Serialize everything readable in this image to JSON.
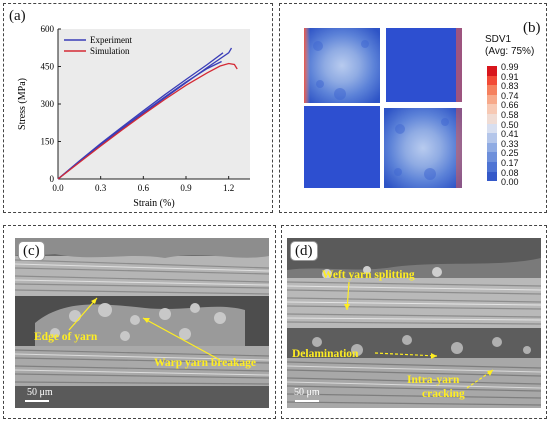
{
  "panels": {
    "a": {
      "label": "(a)"
    },
    "b": {
      "label": "(b)"
    },
    "c": {
      "label": "(c)"
    },
    "d": {
      "label": "(d)"
    }
  },
  "chart_data": {
    "type": "line",
    "xlabel": "Strain (%)",
    "ylabel": "Stress (MPa)",
    "xlim": [
      0.0,
      1.35
    ],
    "ylim": [
      0,
      600
    ],
    "xticks": [
      "0.0",
      "0.3",
      "0.6",
      "0.9",
      "1.2"
    ],
    "yticks": [
      "0",
      "150",
      "300",
      "450",
      "600"
    ],
    "legend_position": "top-left",
    "grid": false,
    "series": [
      {
        "name": "Experiment",
        "color": "#3a3db8",
        "x": [
          0,
          0.15,
          0.3,
          0.45,
          0.6,
          0.75,
          0.9,
          1.05,
          1.16
        ],
        "y": [
          0,
          72,
          142,
          208,
          273,
          337,
          398,
          458,
          505
        ]
      },
      {
        "name": "Experiment",
        "color": "#3a3db8",
        "x": [
          0,
          0.15,
          0.3,
          0.45,
          0.6,
          0.75,
          0.9,
          1.05,
          1.2,
          1.22
        ],
        "y": [
          0,
          68,
          134,
          198,
          262,
          324,
          385,
          446,
          505,
          524
        ]
      },
      {
        "name": "Experiment",
        "color": "#3a3db8",
        "x": [
          0,
          0.15,
          0.3,
          0.45,
          0.6,
          0.75,
          0.9,
          1.05,
          1.15
        ],
        "y": [
          0,
          70,
          138,
          203,
          266,
          328,
          388,
          442,
          470
        ]
      },
      {
        "name": "Simulation",
        "color": "#d42a35",
        "x": [
          0,
          0.15,
          0.3,
          0.45,
          0.6,
          0.75,
          0.9,
          1.05,
          1.14,
          1.2,
          1.24,
          1.26
        ],
        "y": [
          0,
          66,
          132,
          196,
          258,
          318,
          375,
          425,
          452,
          462,
          458,
          440
        ]
      }
    ]
  },
  "contour": {
    "title": "SDV1",
    "subtitle": "(Avg: 75%)",
    "levels": [
      "0.99",
      "0.91",
      "0.83",
      "0.74",
      "0.66",
      "0.58",
      "0.50",
      "0.41",
      "0.33",
      "0.25",
      "0.17",
      "0.08",
      "0.00"
    ],
    "colors": [
      "#d8161c",
      "#f24a36",
      "#f5805e",
      "#f7a98a",
      "#f7c9b4",
      "#f0dcd4",
      "#d8dff0",
      "#b4c6ea",
      "#8fabe3",
      "#6d8fdb",
      "#4e74d4",
      "#3459c9",
      "#1f43c0"
    ]
  },
  "sem_c": {
    "annotations": [
      "Edge of yarn",
      "Warp  yarn breakage"
    ],
    "scale": "50 μm"
  },
  "sem_d": {
    "annotations": [
      "Weft yarn splitting",
      "Delamination",
      "Intra-yarn",
      "cracking"
    ],
    "scale": "50 μm"
  }
}
